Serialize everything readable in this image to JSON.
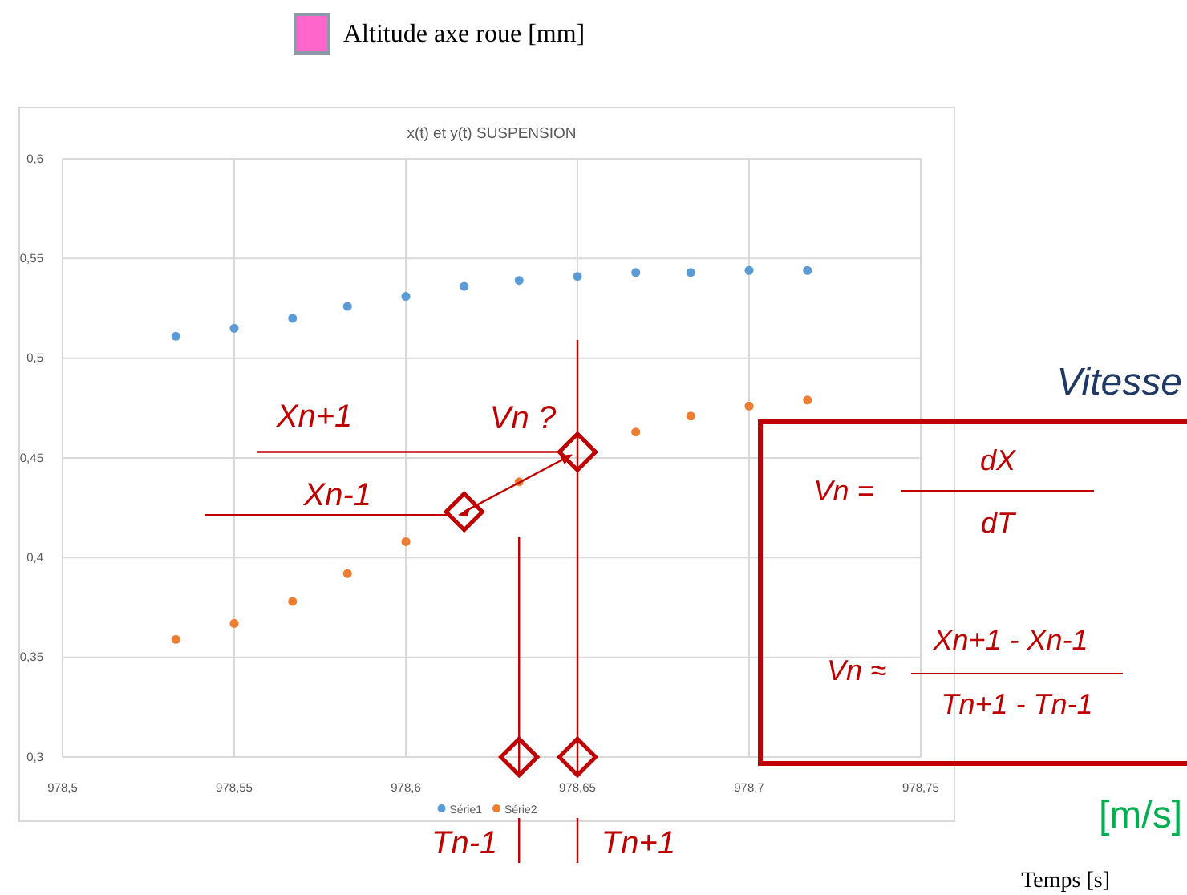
{
  "chart_data": {
    "type": "scatter",
    "title": "x(t) et y(t) SUSPENSION",
    "x": [
      978.533,
      978.55,
      978.567,
      978.583,
      978.6,
      978.617,
      978.633,
      978.65,
      978.667,
      978.683,
      978.7,
      978.717
    ],
    "series": [
      {
        "name": "Série1",
        "color": "#5b9bd5",
        "values": [
          0.511,
          0.515,
          0.52,
          0.526,
          0.531,
          0.536,
          0.539,
          0.541,
          0.543,
          0.543,
          0.544,
          0.544
        ]
      },
      {
        "name": "Série2",
        "color": "#ed7d31",
        "values": [
          0.359,
          0.367,
          0.378,
          0.392,
          0.408,
          null,
          0.438,
          null,
          0.463,
          0.471,
          0.476,
          0.479
        ]
      }
    ],
    "ref_lines": [
      {
        "axis": "x",
        "value": 978.633,
        "color": "#c00000"
      },
      {
        "axis": "x",
        "value": 978.65,
        "color": "#c00000"
      },
      {
        "axis": "y",
        "value": 0.453,
        "label": "Xn+1",
        "color": "#c00000"
      }
    ],
    "xlim": [
      978.5,
      978.75
    ],
    "xticks": [
      {
        "value": 978.5,
        "label": "978,5"
      },
      {
        "value": 978.55,
        "label": "978,55"
      },
      {
        "value": 978.6,
        "label": "978,6"
      },
      {
        "value": 978.65,
        "label": "978,65"
      },
      {
        "value": 978.7,
        "label": "978,7"
      },
      {
        "value": 978.75,
        "label": "978,75"
      }
    ],
    "ylim": [
      0.3,
      0.6
    ],
    "yticks": [
      {
        "value": 0.3,
        "label": "0,3"
      },
      {
        "value": 0.35,
        "label": "0,35"
      },
      {
        "value": 0.4,
        "label": "0,4"
      },
      {
        "value": 0.45,
        "label": "0,45"
      },
      {
        "value": 0.5,
        "label": "0,5"
      },
      {
        "value": 0.55,
        "label": "0,55"
      },
      {
        "value": 0.6,
        "label": "0,6"
      }
    ],
    "grid": true,
    "legend": "bottom",
    "marker": "circle",
    "annotations": [
      "Altitude axe roue [mm]",
      "Vitesse",
      "[m/s]",
      "Temps [s]",
      {
        "text": "Vn ?",
        "x": 978.65,
        "y": 0.453
      },
      {
        "text": "Xn-1",
        "x": 978.617,
        "y": 0.423
      },
      {
        "text": "Tn-1",
        "x": 978.633,
        "y": 0.3
      },
      {
        "text": "Tn+1",
        "x": 978.65,
        "y": 0.3
      },
      "Vn =",
      "dX",
      "dT",
      "Vn ≈",
      "Xn+1  - Xn-1",
      "Tn+1  - Tn-1"
    ]
  }
}
